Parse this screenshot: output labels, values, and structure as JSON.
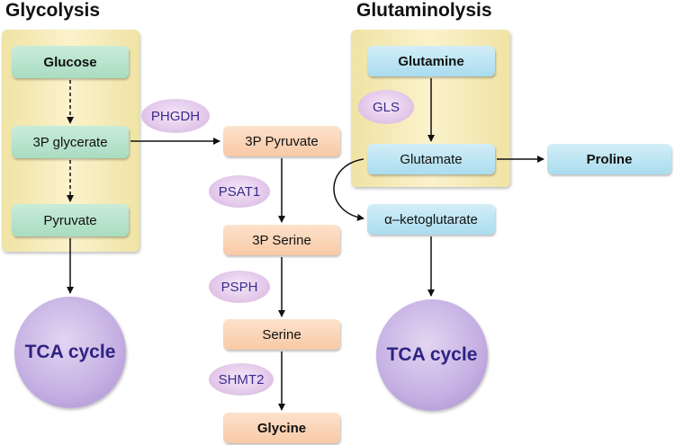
{
  "titles": {
    "glycolysis": "Glycolysis",
    "glutaminolysis": "Glutaminolysis"
  },
  "glycolysis": {
    "glucose": "Glucose",
    "glycerate": "3P glycerate",
    "pyruvate": "Pyruvate"
  },
  "serine_pathway": {
    "pyruvate3p": "3P Pyruvate",
    "serine3p": "3P Serine",
    "serine": "Serine",
    "glycine": "Glycine"
  },
  "glutaminolysis": {
    "glutamine": "Glutamine",
    "glutamate": "Glutamate",
    "proline": "Proline",
    "akg": "α–ketoglutarate"
  },
  "enzymes": {
    "phgdh": "PHGDH",
    "psat1": "PSAT1",
    "psph": "PSPH",
    "shmt2": "SHMT2",
    "gls": "GLS"
  },
  "tca": {
    "left": "TCA cycle",
    "right": "TCA cycle"
  },
  "colors": {
    "panel": "#f3e7b0",
    "glycolysis_node": "#b5e2ca",
    "serine_node": "#fbd4b5",
    "glutamine_node": "#bfe6f4",
    "enzyme": "#e5cdec",
    "tca": "#c7b2e4",
    "enzyme_text": "#3a2a8e"
  }
}
